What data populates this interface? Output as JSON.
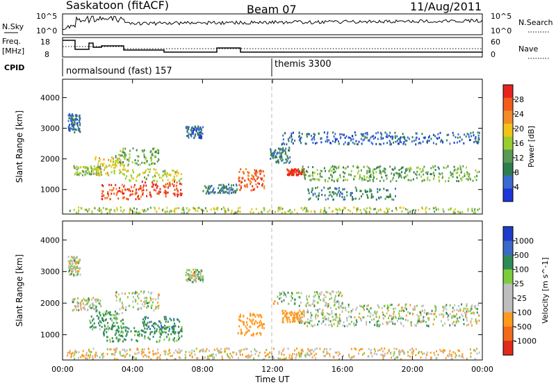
{
  "header": {
    "station": "Saskatoon (fitACF)",
    "beam": "Beam 07",
    "date": "11/Aug/2011"
  },
  "top_panels": {
    "nsky_label": "N.Sky",
    "nsearch_label": "N.Search",
    "nsky_ticks": [
      "10^5",
      "10^0"
    ],
    "nsearch_ticks": [
      "10^5",
      "10^0"
    ],
    "freq_label_line1": "Freq.",
    "freq_label_line2": "[MHz]",
    "freq_ticks": [
      "18",
      "8"
    ],
    "nave_label": "Nave",
    "nave_ticks": [
      "60",
      "0"
    ],
    "cpid_label": "CPID",
    "cpid_segments": [
      {
        "label": "normalsound (fast) 157",
        "start_hour": 0
      },
      {
        "label": "themis 3300",
        "start_hour": 12
      }
    ]
  },
  "colors": {
    "power_scale": [
      "#1c36d8",
      "#3a6ad0",
      "#2e7d4f",
      "#5a9a55",
      "#9acd32",
      "#f0c419",
      "#f28c28",
      "#f45c1c",
      "#e8231e"
    ],
    "velocity_scale": [
      "#1e3cc8",
      "#3b69c8",
      "#2e8b57",
      "#7ccd3c",
      "#bebebe",
      "#bebebe",
      "#ff9a1f",
      "#f06a1a",
      "#e02a1a"
    ]
  },
  "chart_data": [
    {
      "type": "heatmap",
      "title": "",
      "xlabel": "Time UT",
      "ylabel": "Slant Range [km]",
      "xlim_hours": [
        0,
        24
      ],
      "ylim": [
        200,
        4600
      ],
      "x_ticks": [
        "00:00",
        "04:00",
        "08:00",
        "12:00",
        "16:00",
        "20:00",
        "00:00"
      ],
      "y_ticks": [
        "1000",
        "2000",
        "3000",
        "4000"
      ],
      "colorbar": {
        "label": "Power [dB]",
        "ticks": [
          "4",
          "8",
          "12",
          "16",
          "20",
          "24",
          "28"
        ],
        "range": [
          0,
          30
        ]
      },
      "regions": [
        {
          "t0": 0.3,
          "t1": 1.0,
          "r0": 2900,
          "r1": 3500,
          "value": 6
        },
        {
          "t0": 0.6,
          "t1": 2.2,
          "r0": 1500,
          "r1": 1800,
          "value": 14
        },
        {
          "t0": 1.8,
          "t1": 3.5,
          "r0": 1500,
          "r1": 2100,
          "value": 18
        },
        {
          "t0": 2.2,
          "t1": 4.5,
          "r0": 700,
          "r1": 1200,
          "value": 26
        },
        {
          "t0": 3.5,
          "t1": 6.8,
          "r0": 1300,
          "r1": 1700,
          "value": 16
        },
        {
          "t0": 4.5,
          "t1": 6.8,
          "r0": 800,
          "r1": 1300,
          "value": 27
        },
        {
          "t0": 3.0,
          "t1": 5.5,
          "r0": 1800,
          "r1": 2400,
          "value": 12
        },
        {
          "t0": 7.0,
          "t1": 8.0,
          "r0": 2700,
          "r1": 3100,
          "value": 6
        },
        {
          "t0": 8.0,
          "t1": 10.0,
          "r0": 900,
          "r1": 1200,
          "value": 8
        },
        {
          "t0": 10.0,
          "t1": 11.5,
          "r0": 1000,
          "r1": 1700,
          "value": 24
        },
        {
          "t0": 11.8,
          "t1": 13.0,
          "r0": 1900,
          "r1": 2400,
          "value": 8
        },
        {
          "t0": 12.8,
          "t1": 13.8,
          "r0": 1500,
          "r1": 1700,
          "value": 28
        },
        {
          "t0": 13.5,
          "t1": 23.8,
          "r0": 1300,
          "r1": 1800,
          "value": 12
        },
        {
          "t0": 14.0,
          "t1": 19.0,
          "r0": 700,
          "r1": 1100,
          "value": 8
        },
        {
          "t0": 12.5,
          "t1": 23.8,
          "r0": 2500,
          "r1": 2900,
          "value": 5
        },
        {
          "t0": 0.2,
          "t1": 23.8,
          "r0": 250,
          "r1": 450,
          "value": 15
        }
      ]
    },
    {
      "type": "heatmap",
      "title": "",
      "xlabel": "Time UT",
      "ylabel": "Slant Range [km]",
      "xlim_hours": [
        0,
        24
      ],
      "ylim": [
        200,
        4600
      ],
      "x_ticks": [
        "00:00",
        "04:00",
        "08:00",
        "12:00",
        "16:00",
        "20:00",
        "00:00"
      ],
      "y_ticks": [
        "1000",
        "2000",
        "3000",
        "4000"
      ],
      "colorbar": {
        "label": "Velocity [m s^-1]",
        "ticks": [
          "1000",
          "500",
          "100",
          "25",
          "-25",
          "-100",
          "-500",
          "-1000"
        ],
        "range": [
          -1200,
          1200
        ]
      },
      "regions": [
        {
          "t0": 0.3,
          "t1": 1.0,
          "r0": 2900,
          "r1": 3500,
          "value": 0
        },
        {
          "t0": 0.5,
          "t1": 2.2,
          "r0": 1800,
          "r1": 2200,
          "value": 0
        },
        {
          "t0": 1.5,
          "t1": 3.5,
          "r0": 1200,
          "r1": 1800,
          "value": 150
        },
        {
          "t0": 2.2,
          "t1": 6.8,
          "r0": 800,
          "r1": 1300,
          "value": 200
        },
        {
          "t0": 4.5,
          "t1": 6.8,
          "r0": 1100,
          "r1": 1600,
          "value": 400
        },
        {
          "t0": 3.0,
          "t1": 5.5,
          "r0": 1800,
          "r1": 2400,
          "value": 0
        },
        {
          "t0": 7.0,
          "t1": 8.0,
          "r0": 2700,
          "r1": 3100,
          "value": 0
        },
        {
          "t0": 10.0,
          "t1": 11.5,
          "r0": 1000,
          "r1": 1700,
          "value": -250
        },
        {
          "t0": 12.5,
          "t1": 13.8,
          "r0": 1400,
          "r1": 1800,
          "value": -250
        },
        {
          "t0": 13.5,
          "t1": 23.8,
          "r0": 1300,
          "r1": 2000,
          "value": 0
        },
        {
          "t0": 12.0,
          "t1": 16.0,
          "r0": 2000,
          "r1": 2400,
          "value": 0
        },
        {
          "t0": 0.2,
          "t1": 23.8,
          "r0": 250,
          "r1": 600,
          "value": -80
        }
      ]
    }
  ]
}
